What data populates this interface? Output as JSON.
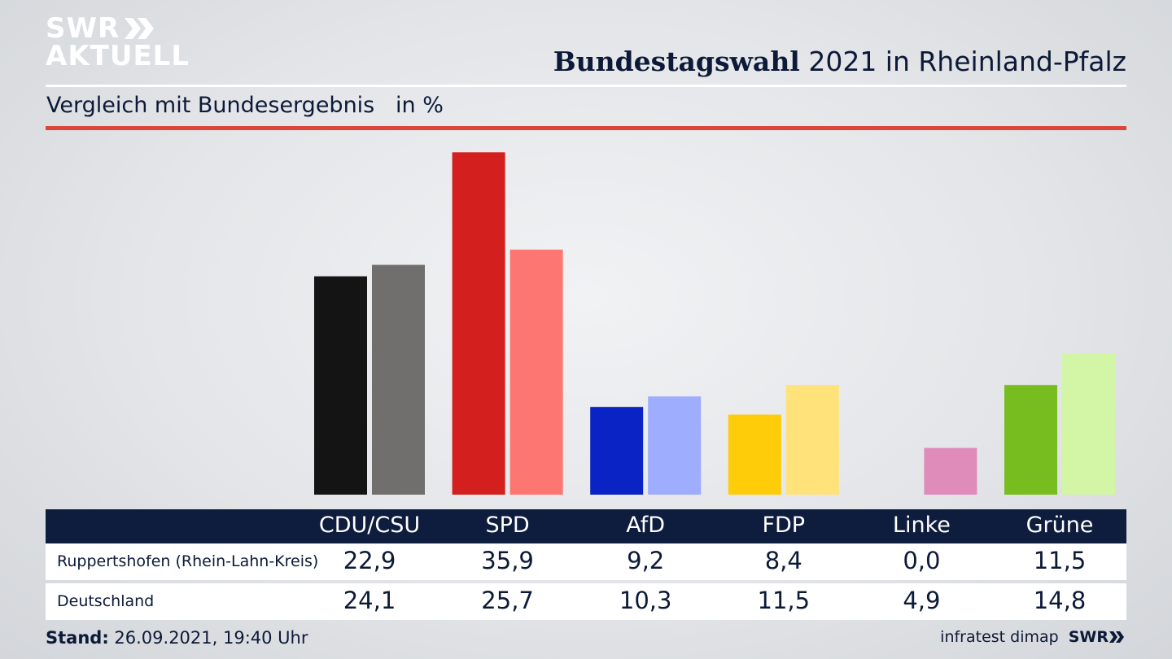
{
  "logo": {
    "line1": "SWR",
    "line2": "AKTUELL"
  },
  "header": {
    "title_bold": "Bundestagswahl",
    "title_rest": " 2021 in Rheinland-Pfalz"
  },
  "subtitle": "Vergleich mit Bundesergebnis   in %",
  "colors": {
    "navy": "#0e1c3e",
    "accent_red": "#d9473a"
  },
  "chart_data": {
    "type": "bar",
    "categories": [
      "CDU/CSU",
      "SPD",
      "AfD",
      "FDP",
      "Linke",
      "Grüne"
    ],
    "series": [
      {
        "name": "Ruppertshofen (Rhein-Lahn-Kreis)",
        "values": [
          22.9,
          35.9,
          9.2,
          8.4,
          0.0,
          11.5
        ],
        "colors": [
          "#141414",
          "#d41f1f",
          "#0a23c4",
          "#ffcc0a",
          "#e08cba",
          "#77bd1f"
        ]
      },
      {
        "name": "Deutschland",
        "values": [
          24.1,
          25.7,
          10.3,
          11.5,
          4.9,
          14.8
        ],
        "colors": [
          "#706f6d",
          "#fd7671",
          "#9eadfe",
          "#ffe27a",
          "#e08cba",
          "#d2f6a6"
        ]
      }
    ],
    "table_rows": [
      {
        "label": "Ruppertshofen (Rhein-Lahn-Kreis)",
        "values": [
          "22,9",
          "35,9",
          "9,2",
          "8,4",
          "0,0",
          "11,5"
        ]
      },
      {
        "label": "Deutschland",
        "values": [
          "24,1",
          "25,7",
          "10,3",
          "11,5",
          "4,9",
          "14,8"
        ]
      }
    ]
  },
  "footer": {
    "stand_label": "Stand:",
    "stand_value": " 26.09.2021, 19:40 Uhr",
    "source": "infratest dimap",
    "brand": "SWR"
  }
}
